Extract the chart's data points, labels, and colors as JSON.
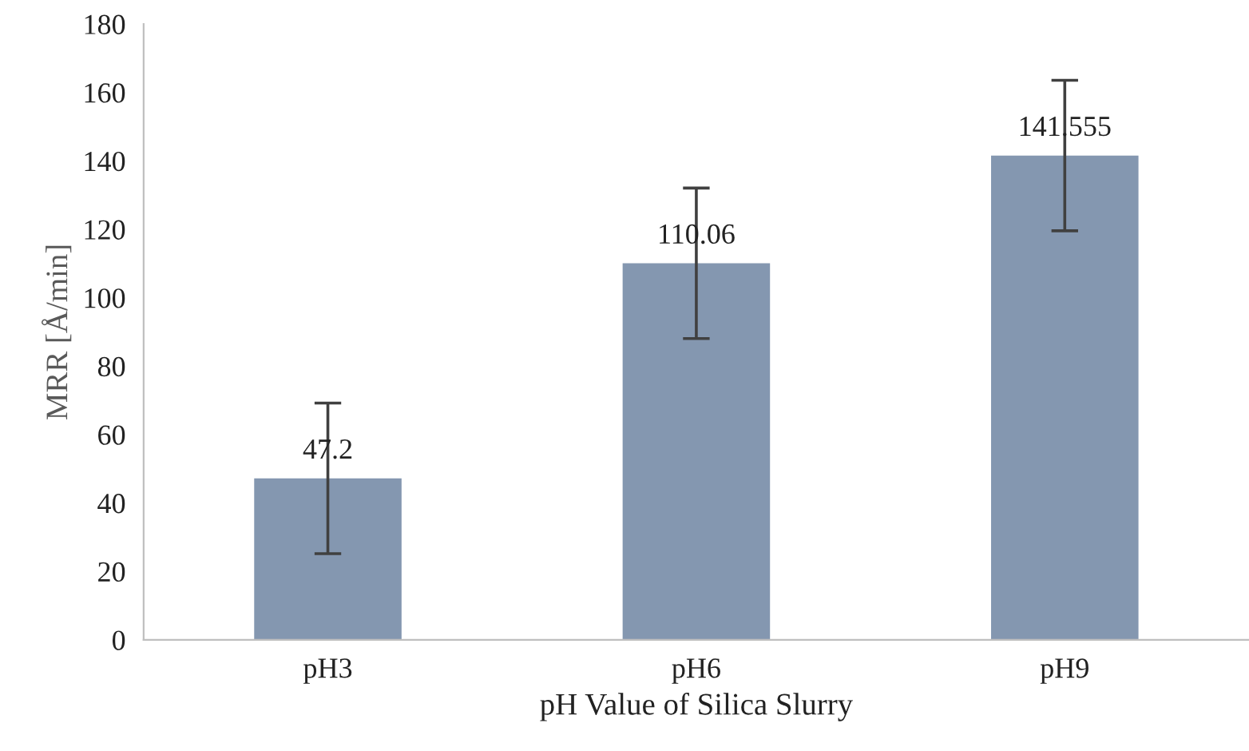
{
  "chart_data": {
    "type": "bar",
    "xlabel": "pH Value of Silica Slurry",
    "ylabel": "MRR [Å/min]",
    "categories": [
      "pH3",
      "pH6",
      "pH9"
    ],
    "values": [
      47.2,
      110.06,
      141.555
    ],
    "errors": [
      22,
      22,
      22
    ],
    "color": "#8497b0",
    "data_labels": true,
    "ylim": [
      0,
      180
    ],
    "yticks": [
      0,
      20,
      40,
      60,
      80,
      100,
      120,
      140,
      160,
      180
    ],
    "grid": false,
    "legend": false
  }
}
